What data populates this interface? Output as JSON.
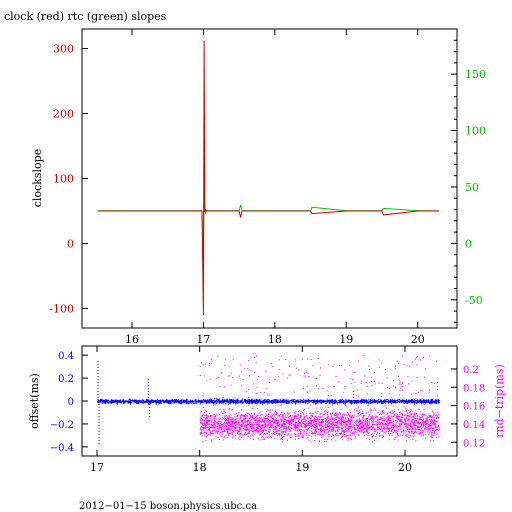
{
  "chart_data": [
    {
      "type": "line",
      "title": "clock (red) rtc (green) slopes",
      "xlabel": "",
      "ylabel": "clockslope",
      "xlim": [
        15.3,
        20.55
      ],
      "ylim": [
        -130,
        330
      ],
      "y2lim": [
        -75,
        190
      ],
      "xticks": [
        16,
        17,
        18,
        19,
        20
      ],
      "yticks": [
        -100,
        0,
        100,
        200,
        300
      ],
      "y2ticks": [
        -50,
        0,
        50,
        100,
        150
      ],
      "colors": {
        "clock": "#d40000",
        "rtc": "#00c800",
        "axes": "#000000"
      },
      "series": [
        {
          "name": "clock",
          "axis": "left",
          "x": [
            15.52,
            16.0,
            16.5,
            16.98,
            17.0,
            17.01,
            17.02,
            17.03,
            17.05,
            17.3,
            17.5,
            17.52,
            17.54,
            18.0,
            18.5,
            18.52,
            19.0,
            19.5,
            19.52,
            20.0,
            20.3
          ],
          "y": [
            50,
            50,
            50,
            50,
            -110,
            312,
            48,
            52,
            50,
            50,
            50,
            40,
            50,
            50,
            50,
            46,
            50,
            50,
            44,
            50,
            50
          ]
        },
        {
          "name": "rtc",
          "axis": "right",
          "x": [
            15.52,
            16.0,
            16.5,
            16.98,
            17.0,
            17.01,
            17.02,
            17.03,
            17.05,
            17.3,
            17.5,
            17.52,
            17.54,
            18.0,
            18.5,
            18.52,
            19.0,
            19.5,
            19.52,
            20.0,
            20.3
          ],
          "y": [
            29,
            29,
            29,
            29,
            -20,
            52,
            32,
            27,
            29,
            29,
            29,
            34,
            29,
            29,
            29,
            32,
            29,
            29,
            31,
            29,
            29
          ]
        }
      ]
    },
    {
      "type": "scatter",
      "title": "",
      "xlabel": "",
      "ylabel": "offset(ms)",
      "y2label": "rnd−trip(ms)",
      "xlim": [
        16.98,
        20.35
      ],
      "ylim": [
        -0.48,
        0.48
      ],
      "y2lim": [
        0.105,
        0.225
      ],
      "xticks": [
        17,
        18,
        19,
        20
      ],
      "yticks": [
        -0.4,
        -0.2,
        0,
        0.2,
        0.4
      ],
      "ytick_labels": [
        "−0.4",
        "−0.2",
        "0",
        "0.2",
        "0.4"
      ],
      "y2ticks": [
        0.12,
        0.14,
        0.16,
        0.18,
        0.2
      ],
      "colors": {
        "offset": "#0000ff",
        "rndtrip": "#ff00ff"
      },
      "series": [
        {
          "name": "offset",
          "axis": "left",
          "x": [
            17.0,
            17.03,
            17.06,
            17.5,
            18.0,
            18.5,
            19.0,
            19.5,
            20.0,
            20.33
          ],
          "y": [
            0.0,
            0.01,
            0.0,
            0.0,
            -0.01,
            0.0,
            0.0,
            -0.01,
            0.0,
            -0.01
          ]
        },
        {
          "name": "rnd-trip",
          "axis": "right",
          "x": [
            18.0,
            18.5,
            19.0,
            19.5,
            20.0,
            20.33
          ],
          "y": [
            0.14,
            0.14,
            0.14,
            0.14,
            0.14,
            0.14
          ]
        }
      ]
    }
  ],
  "footer": "2012−01−15  boson.physics.ubc.ca"
}
